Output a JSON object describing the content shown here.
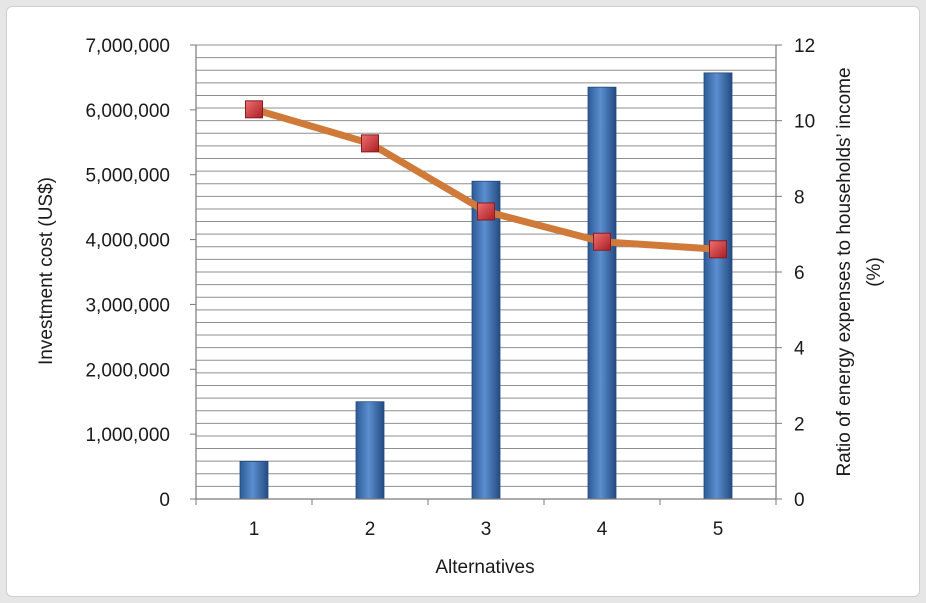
{
  "chart_data": {
    "type": "bar",
    "categories": [
      "1",
      "2",
      "3",
      "4",
      "5"
    ],
    "series": [
      {
        "type": "bar",
        "axis": "left",
        "values": [
          580000,
          1500000,
          4900000,
          6350000,
          6570000
        ],
        "color": "#4a7ebd"
      },
      {
        "type": "line",
        "axis": "right",
        "values": [
          10.3,
          9.4,
          7.6,
          6.8,
          6.6
        ],
        "line_color": "#d07a3a",
        "marker_color": "#d9363e"
      }
    ],
    "xlabel": "Alternatives",
    "ylabel": "Investment cost (US$)",
    "y2label_line1": "Ratio of energy expenses to households’ income",
    "y2label_line2": "(%)",
    "ylim": [
      0,
      7000000
    ],
    "y2lim": [
      0,
      12
    ],
    "yticks": [
      "0",
      "1,000,000",
      "2,000,000",
      "3,000,000",
      "4,000,000",
      "5,000,000",
      "6,000,000",
      "7,000,000"
    ],
    "y2ticks": [
      "0",
      "2",
      "4",
      "6",
      "8",
      "10",
      "12"
    ],
    "grid": true
  }
}
